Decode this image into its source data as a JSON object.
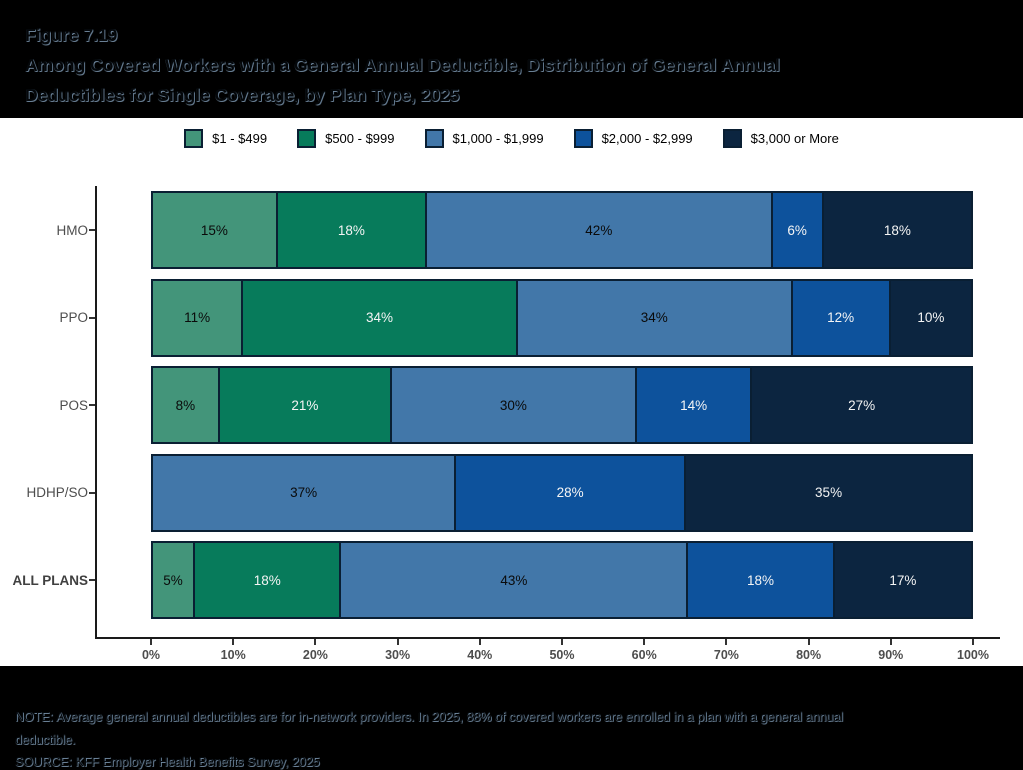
{
  "title": {
    "figure": "Figure 7.19",
    "line1": "Among Covered Workers with a General Annual Deductible, Distribution of General Annual",
    "line2": "Deductibles for Single Coverage, by Plan Type, 2025"
  },
  "chart_data": {
    "type": "bar",
    "orientation": "horizontal",
    "stacked": true,
    "title": "Among Covered Workers with a General Annual Deductible, Distribution of General Annual Deductibles for Single Coverage, by Plan Type, 2025",
    "categories": [
      "HMO",
      "PPO",
      "POS",
      "HDHP/SO",
      "ALL PLANS"
    ],
    "series": [
      {
        "name": "$1 - $499",
        "color": "#43957A",
        "label_color": "#0a0a0a",
        "values": [
          15,
          11,
          8,
          0,
          5
        ]
      },
      {
        "name": "$500 - $999",
        "color": "#077B5B",
        "label_color": "#f5f5f5",
        "values": [
          18,
          34,
          21,
          0,
          18
        ]
      },
      {
        "name": "$1,000 - $1,999",
        "color": "#4277A9",
        "label_color": "#0a0a0a",
        "values": [
          42,
          34,
          30,
          37,
          43
        ]
      },
      {
        "name": "$2,000 - $2,999",
        "color": "#0D529C",
        "label_color": "#f5f5f5",
        "values": [
          6,
          12,
          14,
          28,
          18
        ]
      },
      {
        "name": "$3,000 or More",
        "color": "#0C2540",
        "label_color": "#f5f5f5",
        "values": [
          18,
          10,
          27,
          35,
          17
        ]
      }
    ],
    "value_suffix": "%",
    "x_ticks": [
      "0%",
      "10%",
      "20%",
      "30%",
      "40%",
      "50%",
      "60%",
      "70%",
      "80%",
      "90%",
      "100%"
    ],
    "xlim": [
      0,
      100
    ],
    "legend_position": "top",
    "grid": false,
    "bar_border_color": "#0A1F33"
  },
  "notes": {
    "note": "NOTE: Average general annual deductibles are for in-network providers.  In 2025, 88% of covered workers are enrolled in a plan with a general annual\ndeductible.",
    "source": "SOURCE: KFF Employer Health Benefits Survey, 2025"
  }
}
